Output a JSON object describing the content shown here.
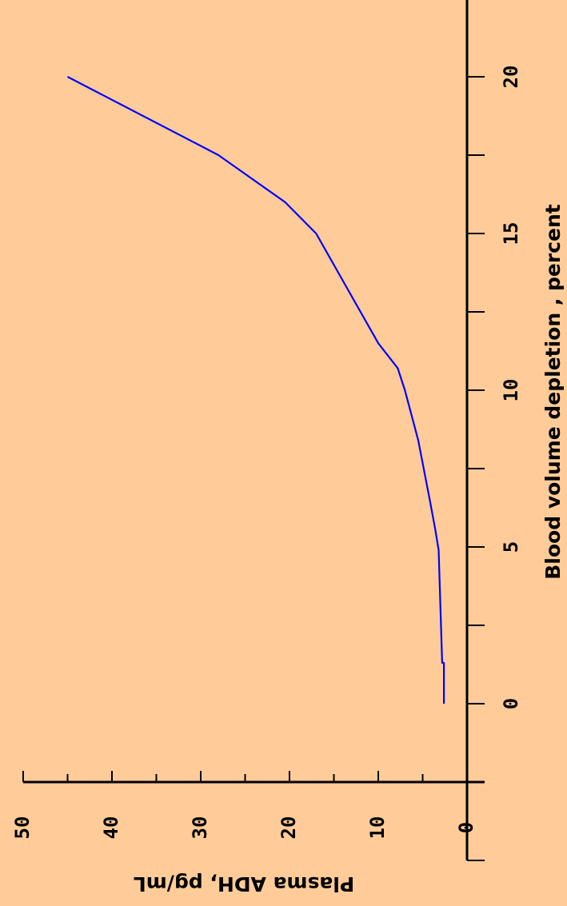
{
  "chart_data": {
    "type": "line",
    "title": "",
    "xlabel": "Blood volume depletion , percent",
    "ylabel": "Plasma ADH, pg/mL",
    "xlim": [
      -5,
      25
    ],
    "ylim": [
      0,
      50
    ],
    "x_ticks": [
      -5,
      -2.5,
      0,
      2.5,
      5,
      7.5,
      10,
      12.5,
      15,
      17.5,
      20,
      22.5,
      25
    ],
    "x_tick_labels": [
      "0",
      "5",
      "10",
      "15",
      "20"
    ],
    "x_tick_label_values": [
      0,
      5,
      10,
      15,
      20
    ],
    "y_ticks": [
      0,
      5,
      10,
      15,
      20,
      25,
      30,
      35,
      40,
      45,
      50
    ],
    "y_tick_labels": [
      "0",
      "10",
      "20",
      "30",
      "40",
      "50"
    ],
    "y_tick_label_values": [
      0,
      10,
      20,
      30,
      40,
      50
    ],
    "grid": false,
    "series": [
      {
        "color": "#0000ff",
        "x": [
          0,
          1.3,
          1.3,
          4.9,
          5.6,
          6.5,
          8.4,
          10,
          10.7,
          11.5,
          15,
          16,
          17.5,
          20
        ],
        "y": [
          2.6,
          2.6,
          2.8,
          3.2,
          3.6,
          4.2,
          5.5,
          7.0,
          7.8,
          10.0,
          17.0,
          20.5,
          28.0,
          45.0
        ]
      }
    ]
  }
}
